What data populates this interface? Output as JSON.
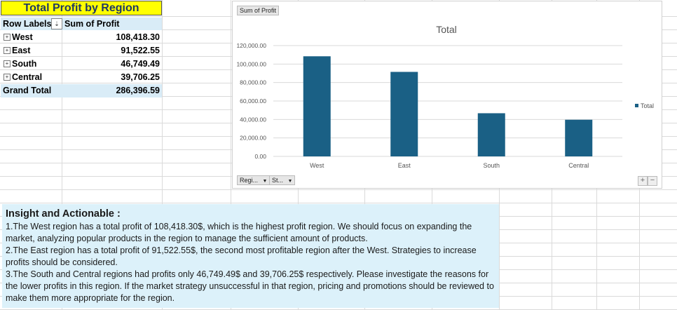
{
  "pivot": {
    "title": "Total Profit by Region",
    "header_row_labels": "Row Labels",
    "header_sum": "Sum of Profit",
    "sort_glyph": "⇣",
    "expand_glyph": "+",
    "rows": [
      {
        "label": "West",
        "value": "108,418.30"
      },
      {
        "label": "East",
        "value": "91,522.55"
      },
      {
        "label": "South",
        "value": "46,749.49"
      },
      {
        "label": "Central",
        "value": "39,706.25"
      }
    ],
    "grand_total_label": "Grand Total",
    "grand_total_value": "286,396.59"
  },
  "chart_fields": {
    "sum_button": "Sum of Profit",
    "region_button": "Regi...",
    "state_button": "St...",
    "dropdown_glyph": "▼",
    "plus_glyph": "+",
    "minus_glyph": "−"
  },
  "chart_data": {
    "type": "bar",
    "title": "Total",
    "categories": [
      "West",
      "East",
      "South",
      "Central"
    ],
    "series": [
      {
        "name": "Total",
        "values": [
          108418.3,
          91522.55,
          46749.49,
          39706.25
        ]
      }
    ],
    "ylim": [
      0,
      120000
    ],
    "yticks": [
      0,
      20000,
      40000,
      60000,
      80000,
      100000,
      120000
    ],
    "ytick_labels": [
      "0.00",
      "20,000.00",
      "40,000.00",
      "60,000.00",
      "80,000.00",
      "100,000.00",
      "120,000.00"
    ],
    "grid": true,
    "legend": "right",
    "color": "#1a6085"
  },
  "insight": {
    "heading": "Insight and Actionable :",
    "points": [
      "1.The West region has a total profit of 108,418.30$, which is the highest profit region. We should focus on expanding the market, analyzing popular products in the region to manage the sufficient amount of products.",
      "2.The East region has a total profit of 91,522.55$, the second most profitable region after the West. Strategies to increase profits should be considered.",
      "3.The South and Central regions had profits only 46,749.49$ and 39,706.25$ respectively. Please investigate the reasons for the lower profits in this region. If the market strategy unsuccessful in that region, pricing and promotions should be reviewed to make them more appropriate for the region."
    ]
  }
}
